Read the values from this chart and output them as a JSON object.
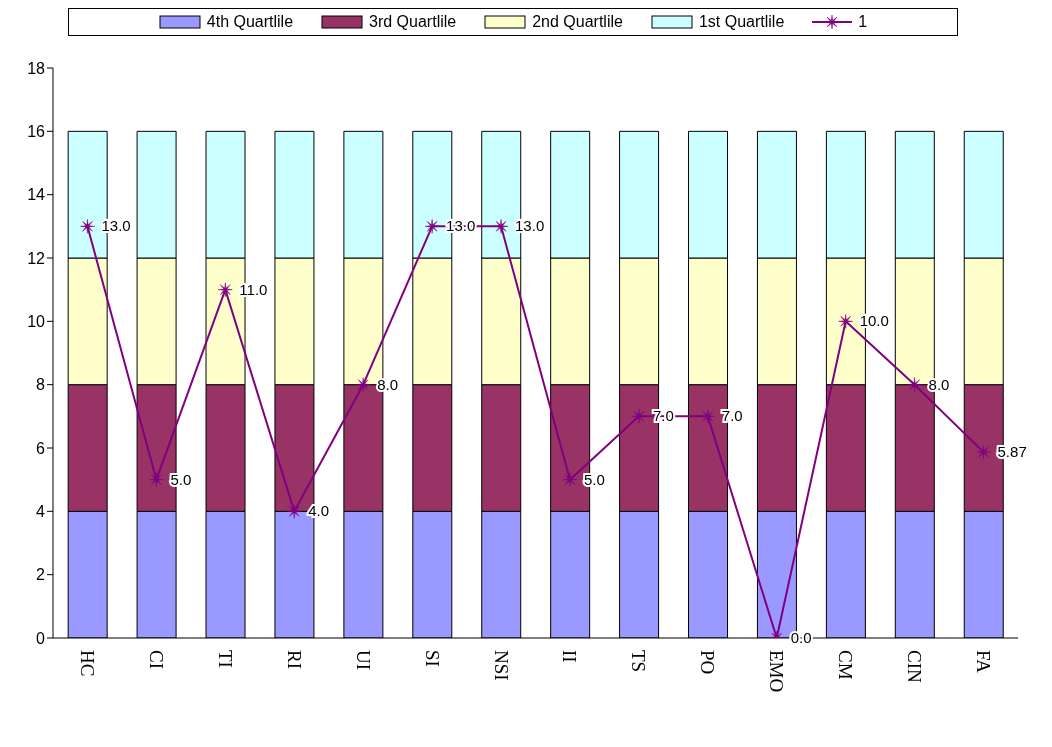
{
  "chart_data": {
    "type": "bar",
    "stacked": true,
    "categories": [
      "HC",
      "CI",
      "TI",
      "RI",
      "UI",
      "SI",
      "NSI",
      "II",
      "TS",
      "PO",
      "EMO",
      "CM",
      "CIN",
      "FA"
    ],
    "series": [
      {
        "name": "4th Quartlile",
        "color": "#9999ff",
        "values": [
          4,
          4,
          4,
          4,
          4,
          4,
          4,
          4,
          4,
          4,
          4,
          4,
          4,
          4
        ]
      },
      {
        "name": "3rd Quartlile",
        "color": "#993366",
        "values": [
          4,
          4,
          4,
          4,
          4,
          4,
          4,
          4,
          4,
          4,
          4,
          4,
          4,
          4
        ]
      },
      {
        "name": "2nd Quartlile",
        "color": "#ffffcc",
        "values": [
          4,
          4,
          4,
          4,
          4,
          4,
          4,
          4,
          4,
          4,
          4,
          4,
          4,
          4
        ]
      },
      {
        "name": "1st Quartlile",
        "color": "#ccffff",
        "values": [
          4,
          4,
          4,
          4,
          4,
          4,
          4,
          4,
          4,
          4,
          4,
          4,
          4,
          4
        ]
      },
      {
        "name": "1",
        "type": "line",
        "color": "#800080",
        "marker": "star",
        "values": [
          13,
          5,
          11,
          4,
          8,
          13,
          13,
          5,
          7,
          7,
          0,
          10,
          8,
          5.87
        ],
        "value_labels": [
          "13.0",
          "5.0",
          "11.0",
          "4.0",
          "8.0",
          "13.0",
          "13.0",
          "5.0",
          "7.0",
          "7.0",
          "0.0",
          "10.0",
          "8.0",
          "5.87"
        ]
      }
    ],
    "ylim": [
      0,
      18
    ],
    "yticks": [
      0,
      2,
      4,
      6,
      8,
      10,
      12,
      14,
      16,
      18
    ],
    "grid": false,
    "legend": "top"
  }
}
